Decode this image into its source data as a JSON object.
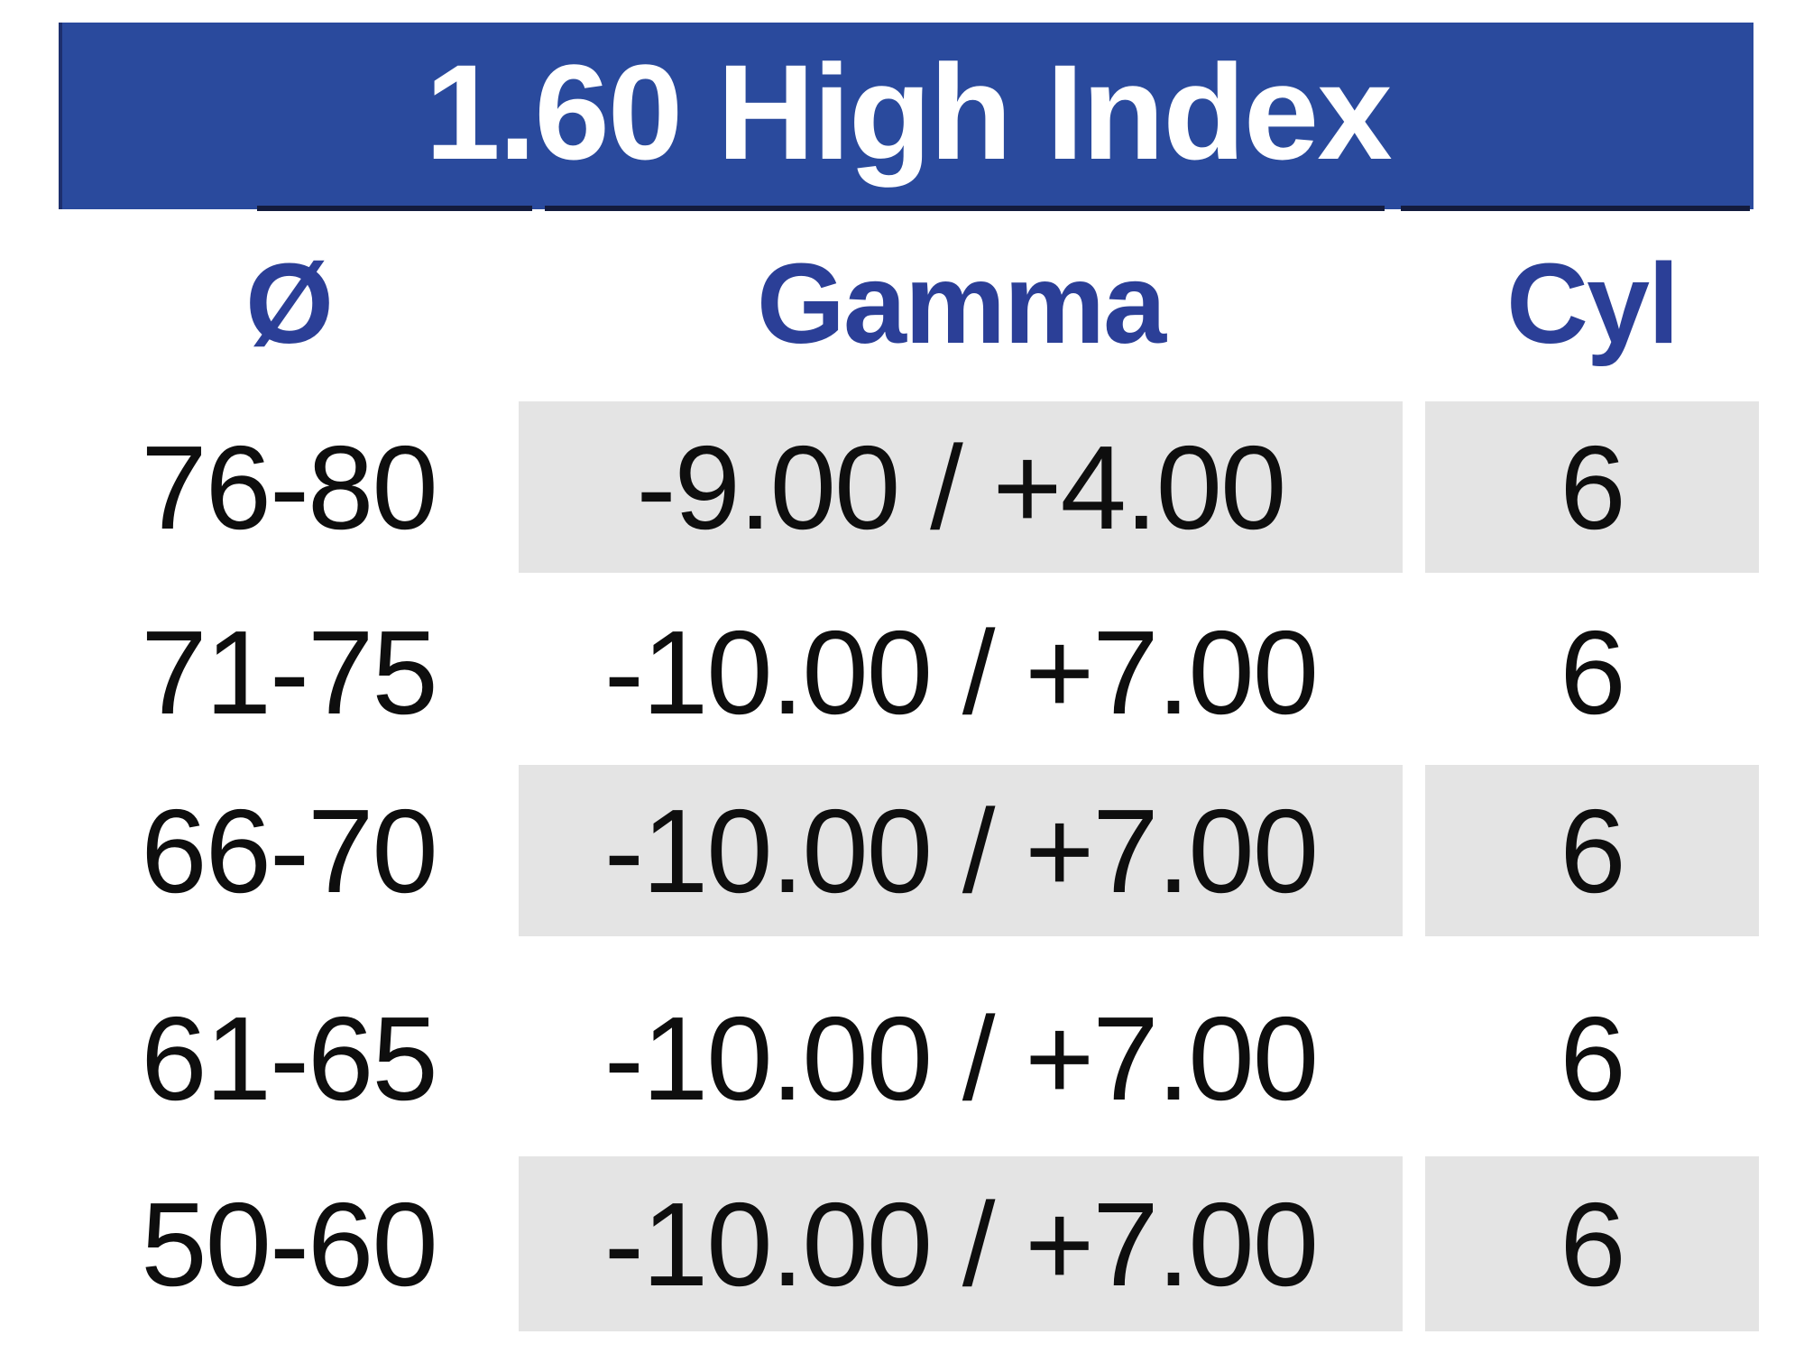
{
  "table": {
    "title": "1.60 High Index",
    "columns": [
      {
        "key": "diameter",
        "label": "Ø"
      },
      {
        "key": "gamma",
        "label": "Gamma"
      },
      {
        "key": "cyl",
        "label": "Cyl"
      }
    ],
    "rows": [
      {
        "diameter": "76-80",
        "gamma": "-9.00 / +4.00",
        "cyl": "6",
        "shaded": true
      },
      {
        "diameter": "71-75",
        "gamma": "-10.00 / +7.00",
        "cyl": "6",
        "shaded": false
      },
      {
        "diameter": "66-70",
        "gamma": "-10.00 / +7.00",
        "cyl": "6",
        "shaded": true
      },
      {
        "diameter": "61-65",
        "gamma": "-10.00 / +7.00",
        "cyl": "6",
        "shaded": false
      },
      {
        "diameter": "50-60",
        "gamma": "-10.00 / +7.00",
        "cyl": "6",
        "shaded": true
      }
    ],
    "colors": {
      "band_background": "#2a4a9d",
      "band_edge": "#131b3d",
      "header_text": "#2b3f97",
      "row_shade": "#e4e4e4",
      "data_text": "#0e0e0e",
      "title_text": "#ffffff"
    }
  }
}
